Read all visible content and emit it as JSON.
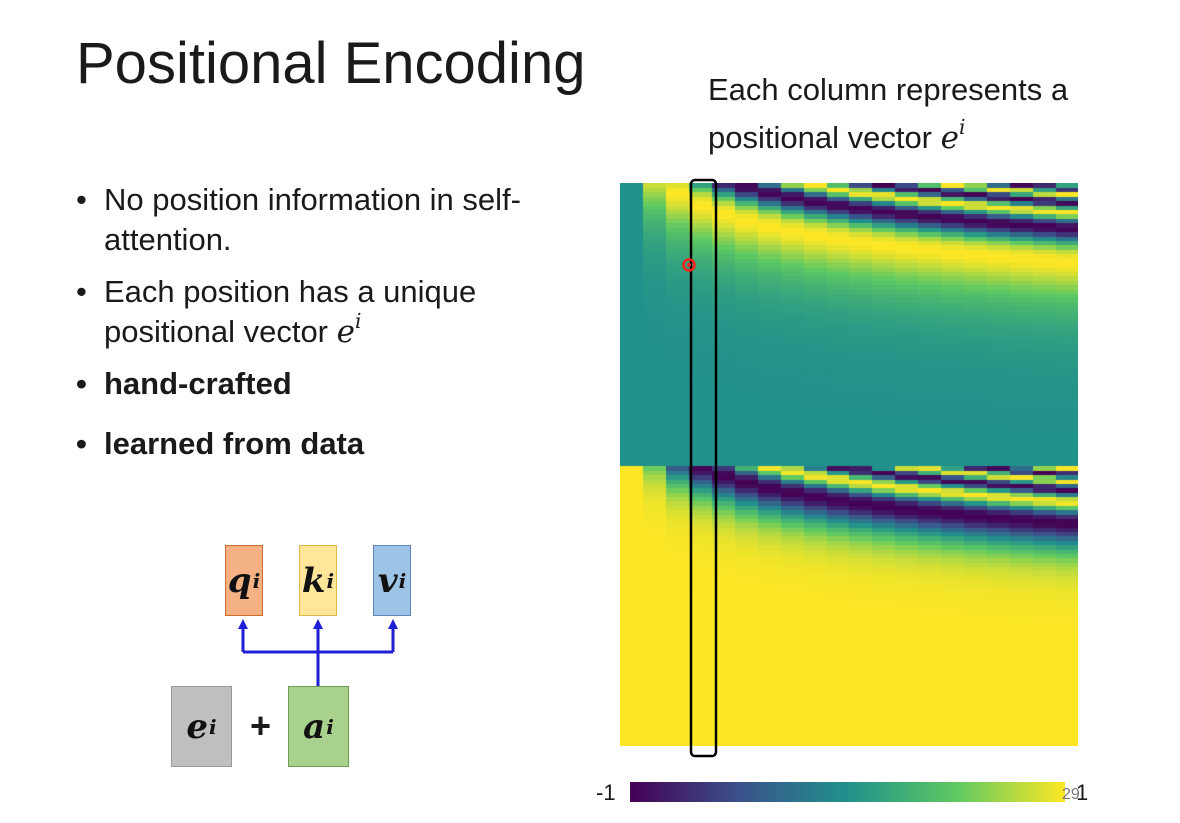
{
  "slide": {
    "title": "Positional Encoding",
    "caption": {
      "line1": "Each column represents a",
      "line2_prefix": "positional vector ",
      "symbol": "e",
      "superscript": "i"
    },
    "bullets": [
      {
        "text": "No position information in self-attention.",
        "bold": false
      },
      {
        "text_prefix": "Each position has a unique positional vector ",
        "symbol": "e",
        "superscript": "i",
        "bold": false
      },
      {
        "text": "hand-crafted",
        "bold": true
      },
      {
        "text": "learned from data",
        "bold": true
      }
    ],
    "diagram": {
      "q_box": {
        "symbol": "q",
        "superscript": "i"
      },
      "k_box": {
        "symbol": "k",
        "superscript": "i"
      },
      "v_box": {
        "symbol": "v",
        "superscript": "i"
      },
      "e_box": {
        "symbol": "e",
        "superscript": "i"
      },
      "a_box": {
        "symbol": "a",
        "superscript": "i"
      },
      "plus": "+"
    },
    "colorbar": {
      "min_label": "-1",
      "max_label": "1"
    },
    "page_number": "29",
    "colors": {
      "viridis_dark": "#440154",
      "viridis_mid": "#21918c",
      "viridis_bright": "#fde725",
      "arrow_blue": "#1f1fd6",
      "highlight_red": "#ff2020"
    }
  }
}
